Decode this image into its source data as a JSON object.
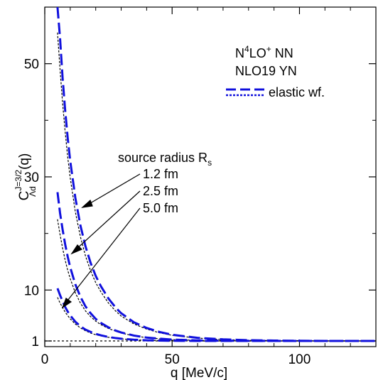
{
  "chart_data": {
    "type": "line",
    "title": "",
    "xlabel": "q [MeV/c]",
    "ylabel": {
      "main": "C",
      "sup": "J=3/2",
      "sub": "Λd",
      "suffix": " (q)"
    },
    "xlim": [
      0,
      130
    ],
    "ylim": [
      0,
      60
    ],
    "x_ticks": [
      0,
      50,
      100
    ],
    "y_ticks": [
      1,
      10,
      30,
      50
    ],
    "grid": false,
    "reference_line": {
      "y": 1,
      "style": "dotted"
    },
    "model_labels": {
      "line1": {
        "base": "N",
        "sup1": "4",
        "mid": "LO",
        "sup2": "+",
        "tail": " NN"
      },
      "line2": "NLO19 YN"
    },
    "legend": {
      "placement": "top-right",
      "label": "elastic wf."
    },
    "source_label": {
      "text": "source radius R",
      "sub": "s"
    },
    "radii_labels": [
      "1.2 fm",
      "2.5 fm",
      "5.0 fm"
    ],
    "colors": {
      "full": "#1010dd",
      "elastic": "#000000",
      "reference": "#000000"
    },
    "series": [
      {
        "radius": "1.2 fm",
        "variant": "full",
        "style": "dashed",
        "x": [
          5,
          6,
          7,
          8,
          9,
          10,
          12,
          14,
          16,
          18,
          20,
          22,
          25,
          28,
          30,
          35,
          40,
          45,
          50,
          60,
          70,
          80,
          90,
          100,
          110,
          120,
          130
        ],
        "y": [
          60,
          54.5,
          47.5,
          41.8,
          36.9,
          32.8,
          26.3,
          21.4,
          17.7,
          14.8,
          12.5,
          10.7,
          8.5,
          6.8,
          5.9,
          4.3,
          3.3,
          2.6,
          2.1,
          1.55,
          1.28,
          1.14,
          1.07,
          1.03,
          1.01,
          1.0,
          1.0
        ]
      },
      {
        "radius": "1.2 fm",
        "variant": "elastic",
        "style": "dotted",
        "x": [
          5,
          6,
          7,
          8,
          9,
          10,
          12,
          14,
          16,
          18,
          20,
          22,
          25,
          28,
          30,
          35,
          40,
          45,
          50,
          60,
          70,
          80,
          90,
          100,
          110,
          120,
          130
        ],
        "y": [
          55.5,
          49,
          43,
          38,
          33.5,
          29.8,
          23.8,
          19.4,
          16.0,
          13.4,
          11.3,
          9.7,
          7.7,
          6.2,
          5.4,
          4.0,
          3.1,
          2.45,
          2.0,
          1.5,
          1.25,
          1.12,
          1.06,
          1.03,
          1.01,
          1.0,
          1.0
        ]
      },
      {
        "radius": "2.5 fm",
        "variant": "full",
        "style": "dashed",
        "x": [
          5,
          6,
          7,
          8,
          9,
          10,
          12,
          14,
          16,
          18,
          20,
          22,
          25,
          28,
          30,
          35,
          40,
          45,
          50,
          60,
          70,
          80,
          90,
          100,
          110,
          120,
          130
        ],
        "y": [
          27.3,
          23.6,
          20.7,
          18.1,
          15.9,
          14.0,
          11.0,
          8.8,
          7.1,
          5.9,
          4.9,
          4.2,
          3.4,
          2.8,
          2.5,
          1.95,
          1.6,
          1.4,
          1.25,
          1.1,
          1.04,
          1.02,
          1.01,
          1.0,
          1.0,
          1.0,
          1.0
        ]
      },
      {
        "radius": "2.5 fm",
        "variant": "elastic",
        "style": "dotted",
        "x": [
          5,
          6,
          7,
          8,
          9,
          10,
          12,
          14,
          16,
          18,
          20,
          22,
          25,
          28,
          30,
          35,
          40,
          45,
          50,
          60,
          70,
          80,
          90,
          100,
          110,
          120,
          130
        ],
        "y": [
          22.5,
          19.8,
          17.4,
          15.3,
          13.5,
          12.0,
          9.5,
          7.7,
          6.3,
          5.3,
          4.5,
          3.9,
          3.2,
          2.7,
          2.4,
          1.9,
          1.58,
          1.38,
          1.24,
          1.1,
          1.04,
          1.02,
          1.01,
          1.0,
          1.0,
          1.0,
          1.0
        ]
      },
      {
        "radius": "5.0 fm",
        "variant": "full",
        "style": "dashed",
        "x": [
          5,
          6,
          7,
          8,
          9,
          10,
          12,
          14,
          16,
          18,
          20,
          22,
          25,
          28,
          30,
          35,
          40,
          45,
          50,
          60,
          70,
          80,
          90,
          100,
          110,
          120,
          130
        ],
        "y": [
          10.3,
          9.1,
          8.0,
          7.0,
          6.2,
          5.5,
          4.4,
          3.6,
          3.0,
          2.6,
          2.25,
          2.0,
          1.7,
          1.5,
          1.4,
          1.22,
          1.12,
          1.06,
          1.03,
          1.01,
          1.0,
          1.0,
          1.0,
          1.0,
          1.0,
          1.0,
          1.0
        ]
      },
      {
        "radius": "5.0 fm",
        "variant": "elastic",
        "style": "dotted",
        "x": [
          5,
          6,
          7,
          8,
          9,
          10,
          12,
          14,
          16,
          18,
          20,
          22,
          25,
          28,
          30,
          35,
          40,
          45,
          50,
          60,
          70,
          80,
          90,
          100,
          110,
          120,
          130
        ],
        "y": [
          8.7,
          7.7,
          6.9,
          6.1,
          5.5,
          4.9,
          4.0,
          3.3,
          2.8,
          2.4,
          2.1,
          1.9,
          1.65,
          1.46,
          1.37,
          1.2,
          1.1,
          1.05,
          1.03,
          1.01,
          1.0,
          1.0,
          1.0,
          1.0,
          1.0,
          1.0,
          1.0
        ]
      }
    ]
  }
}
